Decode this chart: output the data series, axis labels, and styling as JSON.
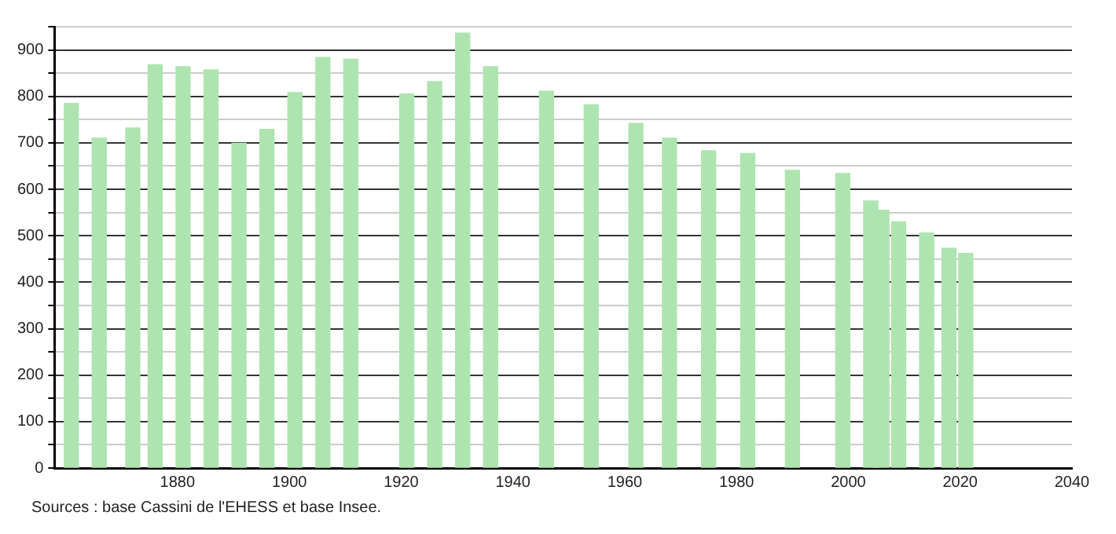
{
  "chart_data": {
    "type": "bar",
    "x": [
      1861,
      1866,
      1872,
      1876,
      1881,
      1886,
      1891,
      1896,
      1901,
      1906,
      1911,
      1921,
      1926,
      1931,
      1936,
      1946,
      1954,
      1962,
      1968,
      1975,
      1982,
      1990,
      1999,
      2004,
      2006,
      2009,
      2014,
      2018,
      2021
    ],
    "values": [
      785,
      710,
      732,
      868,
      864,
      857,
      699,
      729,
      808,
      884,
      880,
      805,
      832,
      936,
      864,
      811,
      782,
      742,
      710,
      683,
      677,
      641,
      634,
      575,
      555,
      530,
      506,
      473,
      462
    ],
    "color": "#aee4b0",
    "xlim": [
      1858,
      2040
    ],
    "xticks": [
      1880,
      1900,
      1920,
      1940,
      1960,
      1980,
      2000,
      2020,
      2040
    ],
    "ylim": [
      0,
      950
    ],
    "yticks": [
      0,
      {
        "value": 50,
        "label": null
      },
      100,
      {
        "value": 150,
        "label": null
      },
      200,
      {
        "value": 250,
        "label": null
      },
      300,
      {
        "value": 350,
        "label": null
      },
      400,
      {
        "value": 450,
        "label": null
      },
      500,
      {
        "value": 550,
        "label": null
      },
      600,
      {
        "value": 650,
        "label": null
      },
      700,
      {
        "value": 750,
        "label": null
      },
      800,
      {
        "value": 850,
        "label": null
      },
      900,
      {
        "value": 950,
        "label": null
      }
    ],
    "grid": "y",
    "legend": false,
    "annotations": [
      "Sources : base Cassini de l'EHESS et base Insee."
    ]
  }
}
